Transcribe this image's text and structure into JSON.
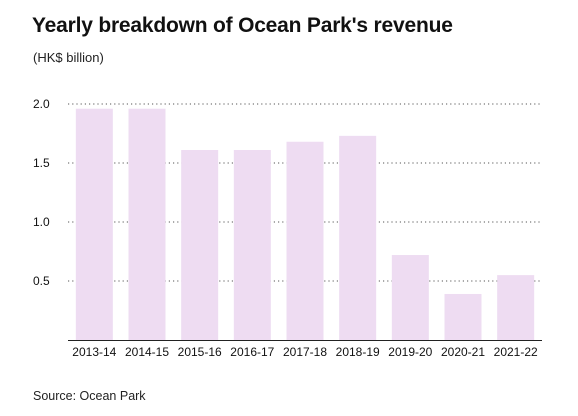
{
  "title": "Yearly breakdown of Ocean Park's revenue",
  "subtitle": "(HK$ billion)",
  "source": "Source: Ocean Park",
  "colors": {
    "bar": "#eedcf2",
    "grid": "#555555",
    "axis": "#222222"
  },
  "chart_data": {
    "type": "bar",
    "categories": [
      "2013-14",
      "2014-15",
      "2015-16",
      "2016-17",
      "2017-18",
      "2018-19",
      "2019-20",
      "2020-21",
      "2021-22"
    ],
    "values": [
      1.96,
      1.96,
      1.61,
      1.61,
      1.68,
      1.73,
      0.72,
      0.39,
      0.55
    ],
    "ylim": [
      0,
      2.0
    ],
    "yticks": [
      "2.0",
      "1.5",
      "1.0",
      "0.5"
    ],
    "ytick_values": [
      2.0,
      1.5,
      1.0,
      0.5
    ],
    "grid": true
  }
}
